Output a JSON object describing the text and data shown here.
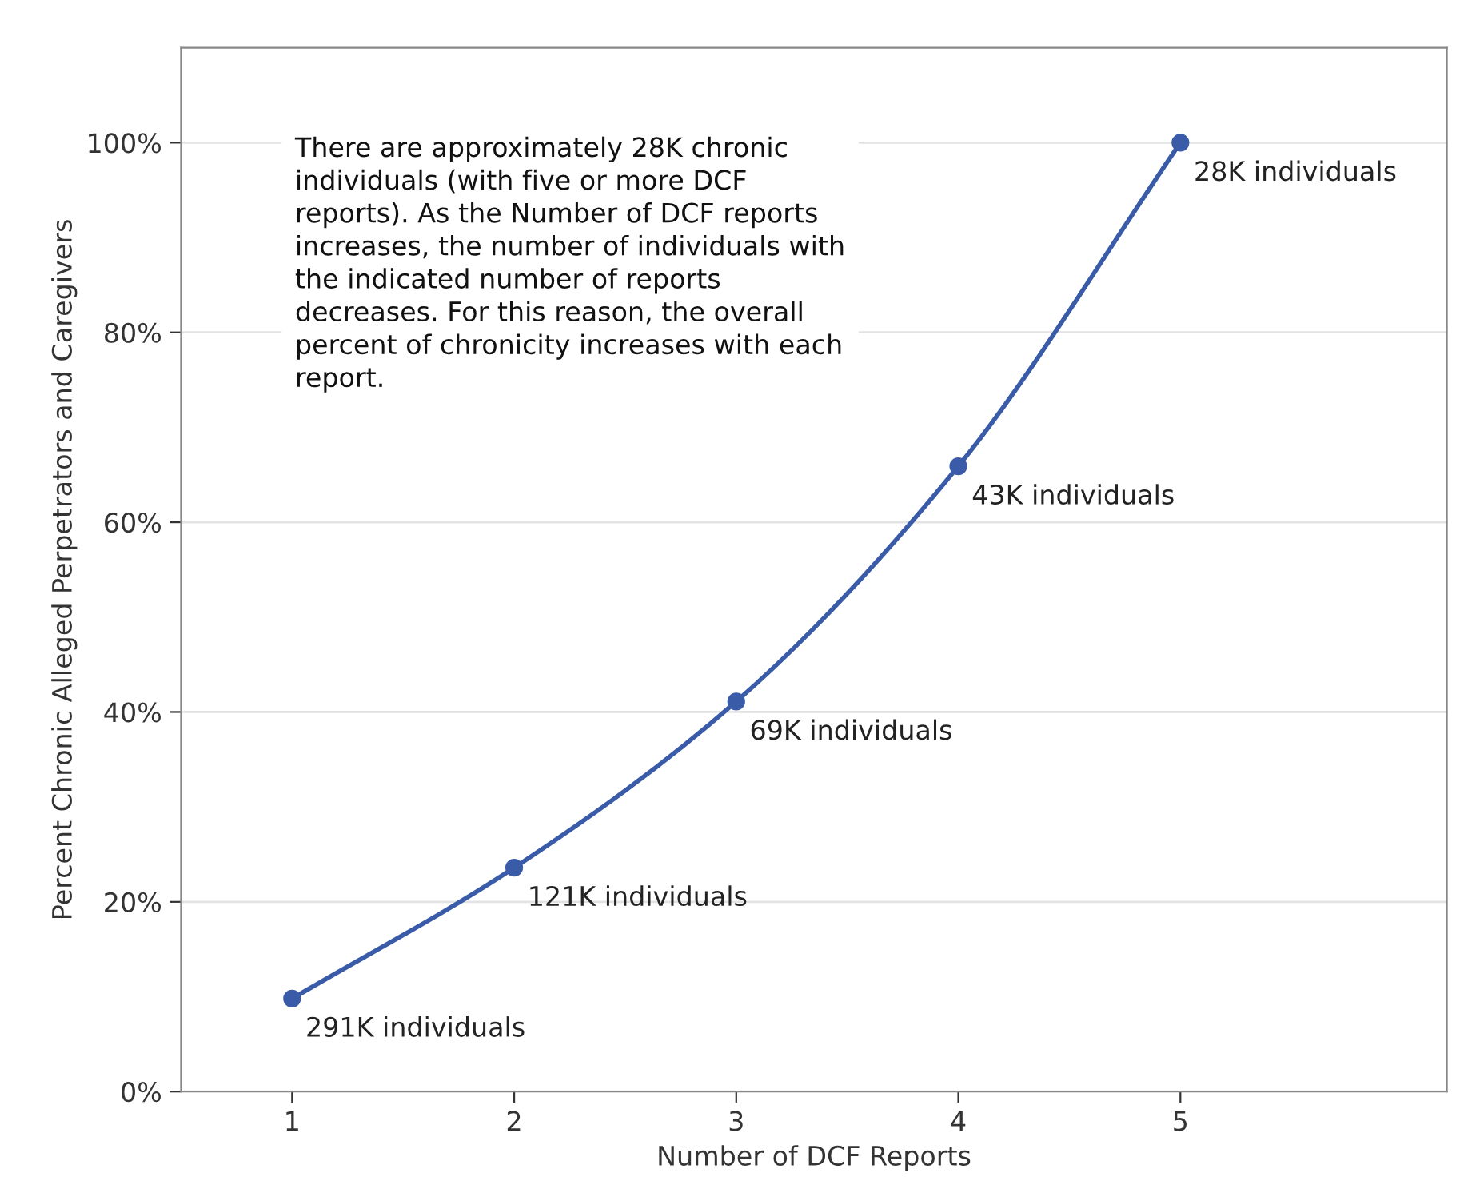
{
  "chart_data": {
    "type": "line",
    "xlabel": "Number of DCF Reports",
    "ylabel": "Percent Chronic Alleged Perpetrators and Caregivers",
    "x": [
      1,
      2,
      3,
      4,
      5
    ],
    "series": [
      {
        "color": "#3a5ba8",
        "values": [
          9.8,
          23.6,
          41.1,
          65.9,
          100
        ]
      }
    ],
    "marker": "circle",
    "line_style": "solid",
    "xlim": [
      0.5,
      6.2
    ],
    "xticks": [
      1,
      2,
      3,
      4,
      5
    ],
    "ylim": [
      0,
      110
    ],
    "yticks": [
      {
        "value": 0,
        "label": "0%"
      },
      {
        "value": 20,
        "label": "20%"
      },
      {
        "value": 40,
        "label": "40%"
      },
      {
        "value": 60,
        "label": "60%"
      },
      {
        "value": 80,
        "label": "80%"
      },
      {
        "value": 100,
        "label": "100%"
      }
    ],
    "grid": "y",
    "legend": false,
    "annotations": [
      {
        "text": "291K individuals",
        "x": 1,
        "y": 9.8
      },
      {
        "text": "121K individuals",
        "x": 2,
        "y": 23.6
      },
      {
        "text": "69K individuals",
        "x": 3,
        "y": 41.1
      },
      {
        "text": "43K individuals",
        "x": 4,
        "y": 65.9
      },
      {
        "text": "28K individuals",
        "x": 5,
        "y": 100
      },
      "There are approximately 28K chronic\nindividuals (with five or more DCF\nreports). As the Number of DCF reports\nincreases, the number of individuals with\nthe indicated number of reports\ndecreases. For this reason, the overall\npercent of chronicity increases with each\nreport."
    ]
  }
}
